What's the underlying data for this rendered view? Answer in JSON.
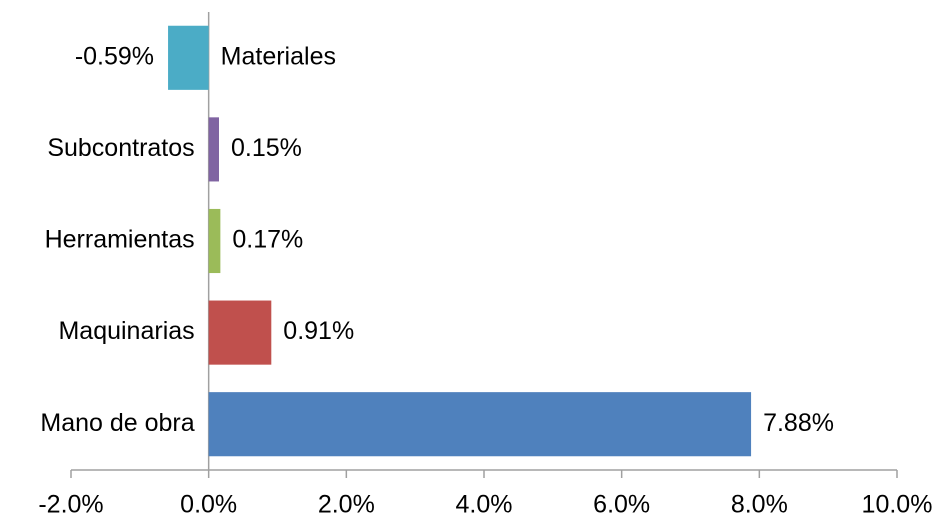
{
  "chart_data": {
    "type": "barh",
    "categories": [
      "Materiales",
      "Subcontratos",
      "Herramientas",
      "Maquinarias",
      "Mano de obra"
    ],
    "values": [
      -0.59,
      0.15,
      0.17,
      0.91,
      7.88
    ],
    "value_labels": [
      "-0.59%",
      "0.15%",
      "0.17%",
      "0.91%",
      "7.88%"
    ],
    "colors": [
      "#4bacc6",
      "#8064a2",
      "#9bbb59",
      "#c0504d",
      "#4f81bd"
    ],
    "xlim": [
      -2,
      10
    ],
    "xticks": [
      {
        "value": -2,
        "label": "-2.0%"
      },
      {
        "value": 0,
        "label": "0.0%"
      },
      {
        "value": 2,
        "label": "2.0%"
      },
      {
        "value": 4,
        "label": "4.0%"
      },
      {
        "value": 6,
        "label": "6.0%"
      },
      {
        "value": 8,
        "label": "8.0%"
      },
      {
        "value": 10,
        "label": "10.0%"
      }
    ],
    "grid": false
  }
}
